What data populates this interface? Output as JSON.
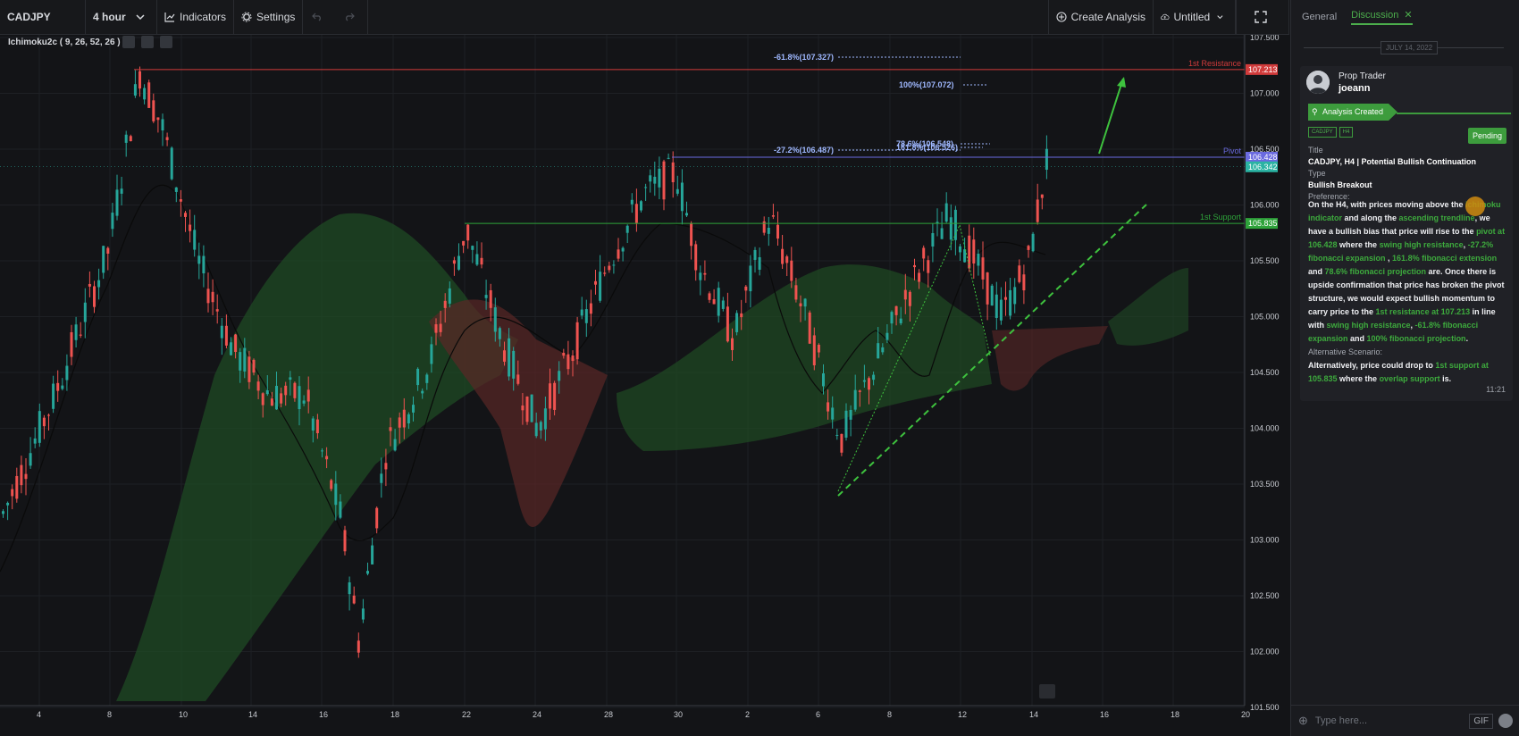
{
  "toolbar": {
    "symbol": "CADJPY",
    "interval": "4 hour",
    "indicators_label": "Indicators",
    "settings_label": "Settings",
    "create_analysis_label": "Create Analysis",
    "layout_name": "Untitled"
  },
  "indicator": {
    "label": "Ichimoku2c ( 9, 26, 52, 26 )"
  },
  "chart": {
    "price_axis": [
      "107.500",
      "107.000",
      "106.500",
      "106.000",
      "105.500",
      "105.000",
      "104.500",
      "104.000",
      "103.500",
      "103.000",
      "102.500",
      "102.000",
      "101.500"
    ],
    "time_axis": [
      "4",
      "8",
      "10",
      "14",
      "16",
      "18",
      "22",
      "24",
      "28",
      "30",
      "2",
      "6",
      "8",
      "12",
      "14",
      "16",
      "18",
      "20"
    ],
    "levels": {
      "resistance": {
        "label": "1st Resistance",
        "price": "107.213",
        "color": "#d13b3b"
      },
      "pivot": {
        "label": "Pivot",
        "price": "106.428",
        "color": "#6a6ae0"
      },
      "current": {
        "price": "106.342",
        "color": "#2bb3a3"
      },
      "support": {
        "label": "1st Support",
        "price": "105.835",
        "color": "#2ea33a"
      }
    },
    "fib_labels": {
      "ext_618": "-61.8%(107.327)",
      "proj_100": "100%(107.072)",
      "ext_272": "-27.2%(106.487)",
      "proj_overlap": "78.6%(106.548)",
      "ext_1618": "161.8%(106.526)"
    },
    "colors": {
      "bull": "#26a69a",
      "bear": "#ef5350",
      "cloud_green": "#1f4a24",
      "cloud_red": "#5a2626",
      "fib": "#9fb8ff",
      "trend": "#3ec23e"
    }
  },
  "sidebar": {
    "tabs": [
      "General",
      "Discussion"
    ],
    "date": "JULY 14, 2022",
    "post": {
      "role": "Prop Trader",
      "username": "joeann",
      "status_banner": "Analysis Created",
      "tags": [
        "CADJPY",
        "H4"
      ],
      "status": "Pending",
      "title_label": "Title",
      "title": "CADJPY, H4 | Potential Bullish Continuation",
      "type_label": "Type",
      "type": "Bullish Breakout",
      "preference_label": "Preference:",
      "pref": {
        "t1": "On the H4, with prices moving above the ",
        "g1": "ichimoku indicator",
        "t2": " and along the ",
        "g2": "ascending trendline",
        "t3": ", we have a bullish bias that price will rise to the ",
        "g3": "pivot at 106.428",
        "t4": " where the ",
        "g4": "swing high resistance",
        "t5": ", ",
        "g5": "-27.2% fibonacci expansion",
        "t6": " , ",
        "g6": "161.8% fibonacci extension",
        "t7": " and ",
        "g7": "78.6% fibonacci projection",
        "t8": " are. Once there is upside confirmation that price has broken the pivot structure, we would expect bullish momentum to carry price to the ",
        "g8": "1st resistance at 107.213",
        "t9": " in line with ",
        "g9": "swing high resistance",
        "t10": ", ",
        "g10": "-61.8% fibonacci expansion",
        "t11": " and ",
        "g11": "100% fibonacci projection",
        "t12": "."
      },
      "alt_label": "Alternative Scenario:",
      "alt": {
        "t1": "Alternatively, price could drop to ",
        "g1": "1st support at 105.835",
        "t2": " where the ",
        "g2": "overlap support",
        "t3": " is."
      },
      "time": "11:21"
    },
    "composer": {
      "placeholder": "Type here...",
      "gif_label": "GIF"
    }
  }
}
